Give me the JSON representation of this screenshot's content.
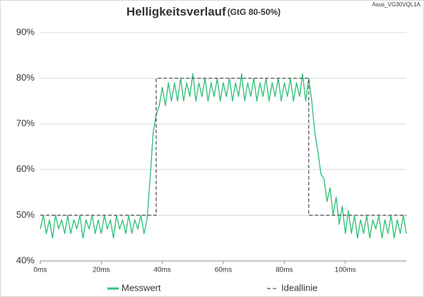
{
  "chart_data": {
    "type": "line",
    "title": "Helligkeitsverlauf",
    "subtitle": "(GtG 80-50%)",
    "annotation": "Asus_VG30VQL1A",
    "x": [
      0,
      1,
      2,
      3,
      4,
      5,
      6,
      7,
      8,
      9,
      10,
      11,
      12,
      13,
      14,
      15,
      16,
      17,
      18,
      19,
      20,
      21,
      22,
      23,
      24,
      25,
      26,
      27,
      28,
      29,
      30,
      31,
      32,
      33,
      34,
      35,
      36,
      37,
      38,
      39,
      40,
      41,
      42,
      43,
      44,
      45,
      46,
      47,
      48,
      49,
      50,
      51,
      52,
      53,
      54,
      55,
      56,
      57,
      58,
      59,
      60,
      61,
      62,
      63,
      64,
      65,
      66,
      67,
      68,
      69,
      70,
      71,
      72,
      73,
      74,
      75,
      76,
      77,
      78,
      79,
      80,
      81,
      82,
      83,
      84,
      85,
      86,
      87,
      88,
      89,
      90,
      91,
      92,
      93,
      94,
      95,
      96,
      97,
      98,
      99,
      100,
      101,
      102,
      103,
      104,
      105,
      106,
      107,
      108,
      109,
      110,
      111,
      112,
      113,
      114,
      115,
      116,
      117,
      118,
      119,
      120
    ],
    "series": [
      {
        "name": "Messwert",
        "color": "#33c27a",
        "values": [
          47,
          50,
          46,
          49,
          45,
          50,
          47,
          49,
          46,
          50,
          46,
          49,
          47,
          50,
          45,
          49,
          47,
          50,
          46,
          49,
          46,
          50,
          47,
          49,
          45,
          50,
          47,
          49,
          46,
          50,
          46,
          49,
          47,
          50,
          46,
          49,
          58,
          68,
          72,
          74,
          78,
          74,
          79,
          75,
          79,
          75,
          80,
          75,
          79,
          76,
          81,
          75,
          79,
          76,
          80,
          75,
          79,
          76,
          80,
          75,
          79,
          76,
          80,
          75,
          79,
          76,
          81,
          75,
          79,
          76,
          80,
          75,
          79,
          76,
          80,
          75,
          79,
          76,
          80,
          75,
          79,
          76,
          80,
          75,
          79,
          76,
          81,
          75,
          80,
          75,
          68,
          64,
          59,
          58,
          53,
          56,
          50,
          54,
          48,
          52,
          46,
          51,
          46,
          50,
          45,
          49,
          46,
          50,
          45,
          49,
          47,
          50,
          45,
          49,
          46,
          50,
          45,
          49,
          46,
          50,
          46
        ]
      },
      {
        "name": "Ideallinie",
        "color": "#555555",
        "dashed": true,
        "x": [
          0,
          38,
          38,
          88,
          88,
          120
        ],
        "values": [
          50,
          50,
          80,
          80,
          50,
          50
        ]
      }
    ],
    "xlim": [
      0,
      120
    ],
    "ylim": [
      40,
      90
    ],
    "xticks": [
      {
        "value": 0,
        "label": "0ms"
      },
      {
        "value": 20,
        "label": "20ms"
      },
      {
        "value": 40,
        "label": "40ms"
      },
      {
        "value": 60,
        "label": "60ms"
      },
      {
        "value": 80,
        "label": "80ms"
      },
      {
        "value": 100,
        "label": "100ms"
      }
    ],
    "yticks": [
      {
        "value": 40,
        "label": "40%"
      },
      {
        "value": 50,
        "label": "50%"
      },
      {
        "value": 60,
        "label": "60%"
      },
      {
        "value": 70,
        "label": "70%"
      },
      {
        "value": 80,
        "label": "80%"
      },
      {
        "value": 90,
        "label": "90%"
      }
    ],
    "grid": true,
    "legend": "bottom"
  }
}
